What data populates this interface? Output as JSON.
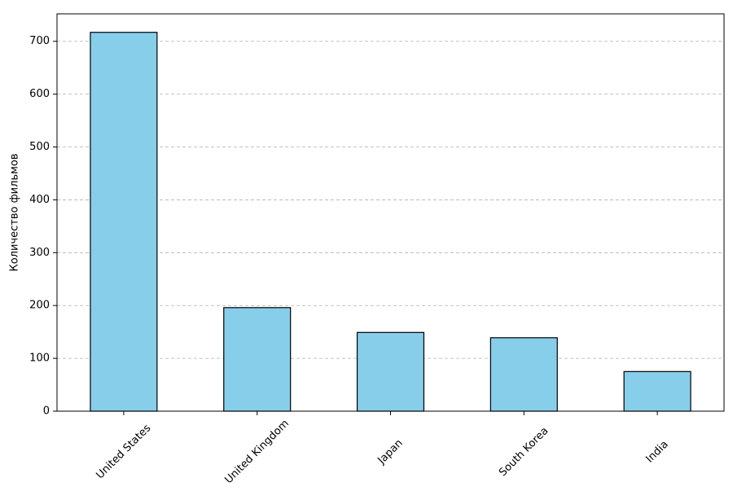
{
  "chart_data": {
    "type": "bar",
    "y_label": "Количество фильмов",
    "categories": [
      "United States",
      "United Kingdom",
      "Japan",
      "South Korea",
      "India"
    ],
    "values": [
      717,
      196,
      149,
      139,
      75
    ],
    "color": "#87ceeb",
    "edge_color": "#000000",
    "ylim": [
      0,
      752
    ],
    "yticks": [
      0,
      100,
      200,
      300,
      400,
      500,
      600,
      700
    ],
    "grid": true
  }
}
